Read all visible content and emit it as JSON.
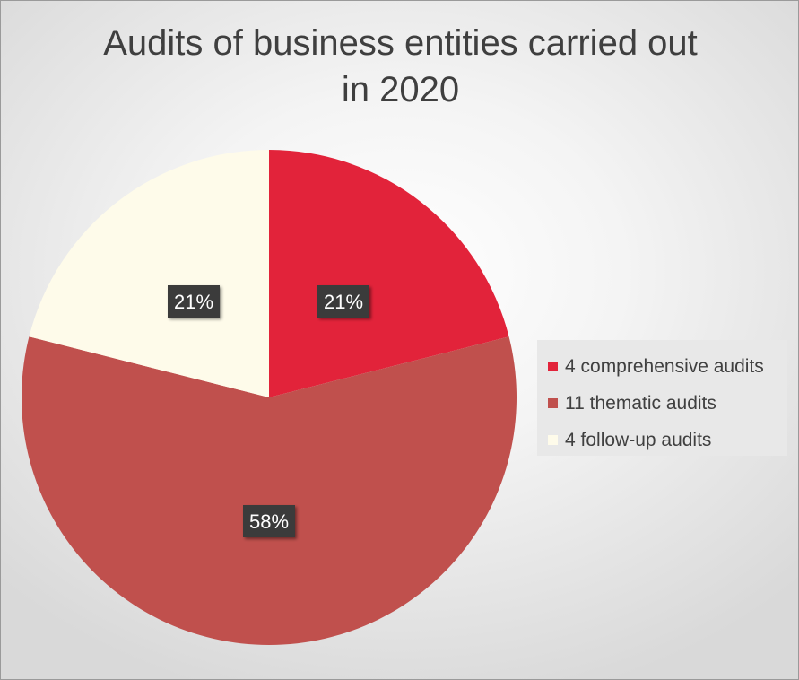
{
  "chart_data": {
    "type": "pie",
    "title": "Audits of business entities carried out in 2020",
    "categories": [
      "4 comprehensive audits",
      "11 thematic audits",
      "4 follow-up audits"
    ],
    "values": [
      4,
      11,
      4
    ],
    "data_labels": [
      "21%",
      "58%",
      "21%"
    ],
    "colors": [
      "#e2233a",
      "#c0504d",
      "#fefbea"
    ],
    "legend": {
      "placement": "right"
    }
  }
}
